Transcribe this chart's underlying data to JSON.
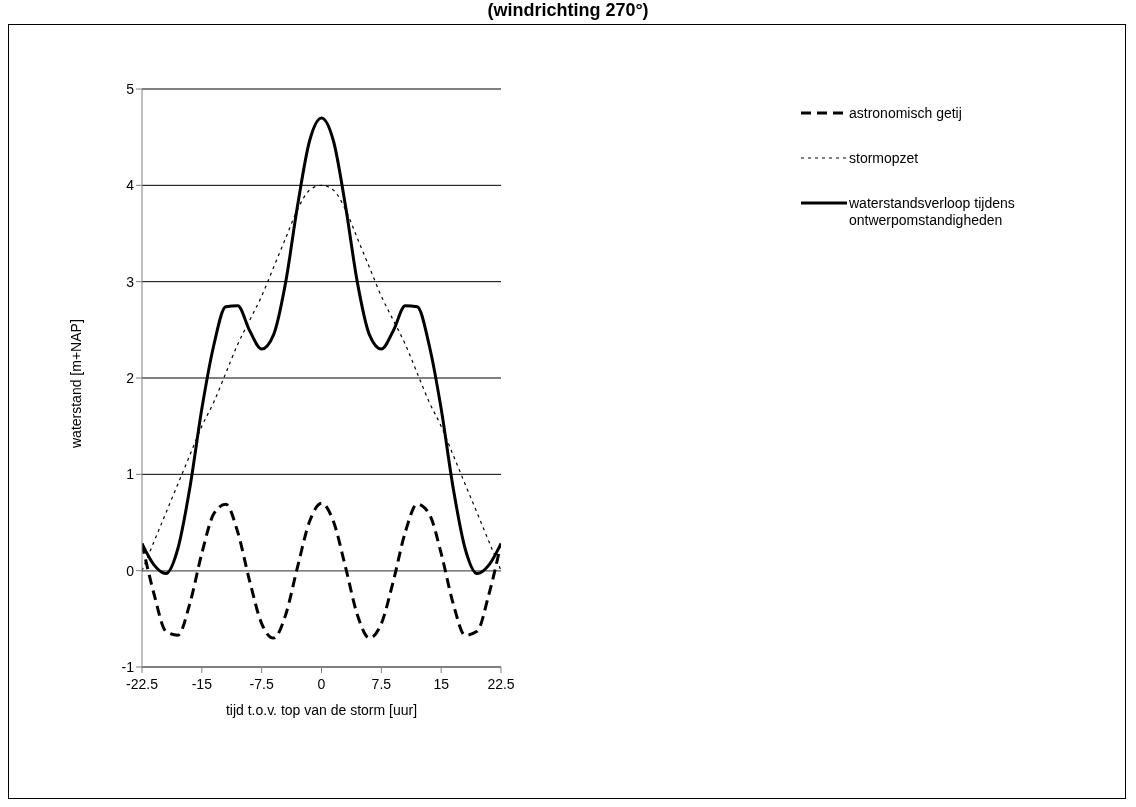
{
  "chart_data": {
    "type": "line",
    "title": "(windrichting 270°)",
    "xlabel": "tijd t.o.v. top van de storm [uur]",
    "ylabel": "waterstand [m+NAP]",
    "x": [
      -22.5,
      -21,
      -19.5,
      -18,
      -16.5,
      -15,
      -13.5,
      -12,
      -10.5,
      -9,
      -7.5,
      -6,
      -4.5,
      -3,
      -1.5,
      0,
      1.5,
      3,
      4.5,
      6,
      7.5,
      9,
      10.5,
      12,
      13.5,
      15,
      16.5,
      18,
      19.5,
      21,
      22.5
    ],
    "series": [
      {
        "name": "astronomisch getij",
        "color": "#000000",
        "line_style": "dashed",
        "values": [
          0.28,
          -0.24,
          -0.63,
          -0.67,
          -0.34,
          0.18,
          0.59,
          0.69,
          0.4,
          -0.11,
          -0.55,
          -0.7,
          -0.46,
          0.04,
          0.51,
          0.7,
          0.51,
          0.04,
          -0.46,
          -0.7,
          -0.55,
          -0.11,
          0.4,
          0.69,
          0.59,
          0.18,
          -0.34,
          -0.67,
          -0.63,
          -0.24,
          0.28
        ]
      },
      {
        "name": "stormopzet",
        "color": "#000000",
        "line_style": "dotted",
        "values": [
          0.0,
          0.3,
          0.6,
          0.9,
          1.2,
          1.5,
          1.75,
          2.05,
          2.35,
          2.6,
          2.85,
          3.15,
          3.45,
          3.75,
          3.95,
          4.0,
          3.95,
          3.75,
          3.45,
          3.15,
          2.85,
          2.6,
          2.35,
          2.05,
          1.75,
          1.5,
          1.2,
          0.9,
          0.6,
          0.3,
          0.0
        ]
      },
      {
        "name": "waterstandsverloop tijdens ontwerpomstandigheden",
        "color": "#000000",
        "line_style": "solid",
        "values": [
          0.28,
          0.06,
          -0.03,
          0.23,
          0.86,
          1.68,
          2.34,
          2.74,
          2.75,
          2.49,
          2.3,
          2.45,
          2.99,
          3.79,
          4.46,
          4.7,
          4.46,
          3.79,
          2.99,
          2.45,
          2.3,
          2.49,
          2.75,
          2.74,
          2.34,
          1.68,
          0.86,
          0.23,
          -0.03,
          0.06,
          0.28
        ]
      }
    ],
    "xlim": [
      -22.5,
      22.5
    ],
    "xticks": [
      -22.5,
      -15,
      -7.5,
      0,
      7.5,
      15,
      22.5
    ],
    "ylim": [
      -1,
      5
    ],
    "yticks": [
      -1,
      0,
      1,
      2,
      3,
      4,
      5
    ],
    "grid": "y",
    "legend": "right",
    "marker": "none"
  }
}
